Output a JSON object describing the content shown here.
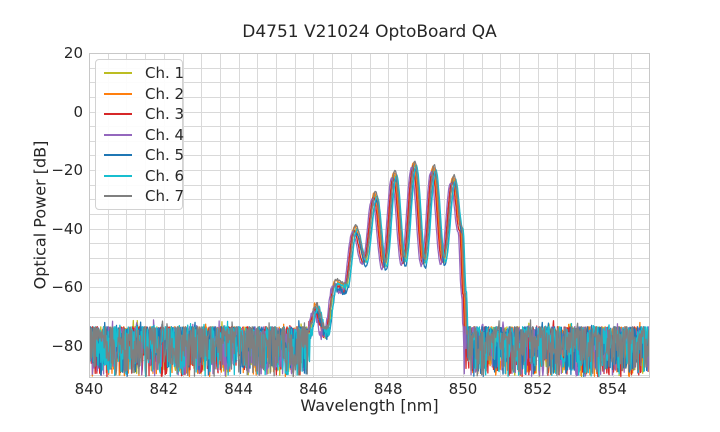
{
  "figure": {
    "background": "#ffffff",
    "text_color": "#262626",
    "grid_color": "#d9d9d9",
    "spine_color": "#c8c8c8"
  },
  "chart_data": {
    "type": "line",
    "title": "D4751 V21024 OptoBoard QA",
    "xlabel": "Wavelength [nm]",
    "ylabel": "Optical Power [dB]",
    "xlim": [
      840,
      855
    ],
    "ylim": [
      -91,
      20
    ],
    "grid": {
      "visible": true,
      "x_step_nm": 0.5,
      "y_step_db": 5
    },
    "legend_position": "upper left",
    "xticks": [
      {
        "value": 840,
        "label": "840"
      },
      {
        "value": 842,
        "label": "842"
      },
      {
        "value": 844,
        "label": "844"
      },
      {
        "value": 846,
        "label": "846"
      },
      {
        "value": 848,
        "label": "848"
      },
      {
        "value": 850,
        "label": "850"
      },
      {
        "value": 852,
        "label": "852"
      },
      {
        "value": 854,
        "label": "854"
      }
    ],
    "yticks": [
      {
        "value": 20,
        "label": "20"
      },
      {
        "value": 0,
        "label": "0"
      },
      {
        "value": -20,
        "label": "−20"
      },
      {
        "value": -40,
        "label": "−40"
      },
      {
        "value": -60,
        "label": "−60"
      },
      {
        "value": -80,
        "label": "−80"
      }
    ],
    "series": [
      {
        "name": "Ch. 1",
        "color": "#bcbd22",
        "wavelength_offset_nm": 0.0,
        "power_offset_db": -0.5
      },
      {
        "name": "Ch. 2",
        "color": "#ff7f0e",
        "wavelength_offset_nm": -0.02,
        "power_offset_db": 0.8
      },
      {
        "name": "Ch. 3",
        "color": "#d62728",
        "wavelength_offset_nm": -0.04,
        "power_offset_db": -0.8
      },
      {
        "name": "Ch. 4",
        "color": "#9467bd",
        "wavelength_offset_nm": -0.08,
        "power_offset_db": -1.2
      },
      {
        "name": "Ch. 5",
        "color": "#1f77b4",
        "wavelength_offset_nm": 0.03,
        "power_offset_db": -1.8
      },
      {
        "name": "Ch. 6",
        "color": "#17becf",
        "wavelength_offset_nm": 0.05,
        "power_offset_db": -0.3
      },
      {
        "name": "Ch. 7",
        "color": "#7f7f7f",
        "wavelength_offset_nm": 0.01,
        "power_offset_db": 1.2
      }
    ],
    "spectrum_model": {
      "description": "Laser emission band between 846 and 850 nm with ~0.52 nm fringe spacing rising out of a noise floor; sharp cutoff at 850 nm; dense noise hash elsewhere.",
      "signal_anchor_points_nm_db": [
        [
          845.85,
          -77
        ],
        [
          846.07,
          -67
        ],
        [
          846.33,
          -76
        ],
        [
          846.6,
          -58.5
        ],
        [
          846.86,
          -60
        ],
        [
          847.12,
          -40
        ],
        [
          847.38,
          -51
        ],
        [
          847.65,
          -28.5
        ],
        [
          847.91,
          -52.5
        ],
        [
          848.17,
          -21.5
        ],
        [
          848.43,
          -51
        ],
        [
          848.7,
          -18
        ],
        [
          848.96,
          -51.5
        ],
        [
          849.22,
          -19.5
        ],
        [
          849.48,
          -51
        ],
        [
          849.75,
          -23
        ],
        [
          849.95,
          -40
        ],
        [
          850.04,
          -62
        ],
        [
          850.12,
          -88
        ]
      ],
      "mode_peaks_nm_db": [
        [
          846.07,
          -67
        ],
        [
          846.6,
          -58.5
        ],
        [
          847.12,
          -40
        ],
        [
          847.65,
          -28.5
        ],
        [
          848.17,
          -21.5
        ],
        [
          848.7,
          -18
        ],
        [
          849.22,
          -19.5
        ],
        [
          849.75,
          -23
        ]
      ],
      "noise_floor": {
        "top_db": -73.5,
        "spread_db": 17,
        "spike_prob": 0.05,
        "spike_db": 2.5
      },
      "signal_jitter_db": {
        "smooth": 0.35,
        "ragged": 1.5,
        "ragged_below_db": -60
      },
      "sample_step_nm": 0.015
    }
  }
}
